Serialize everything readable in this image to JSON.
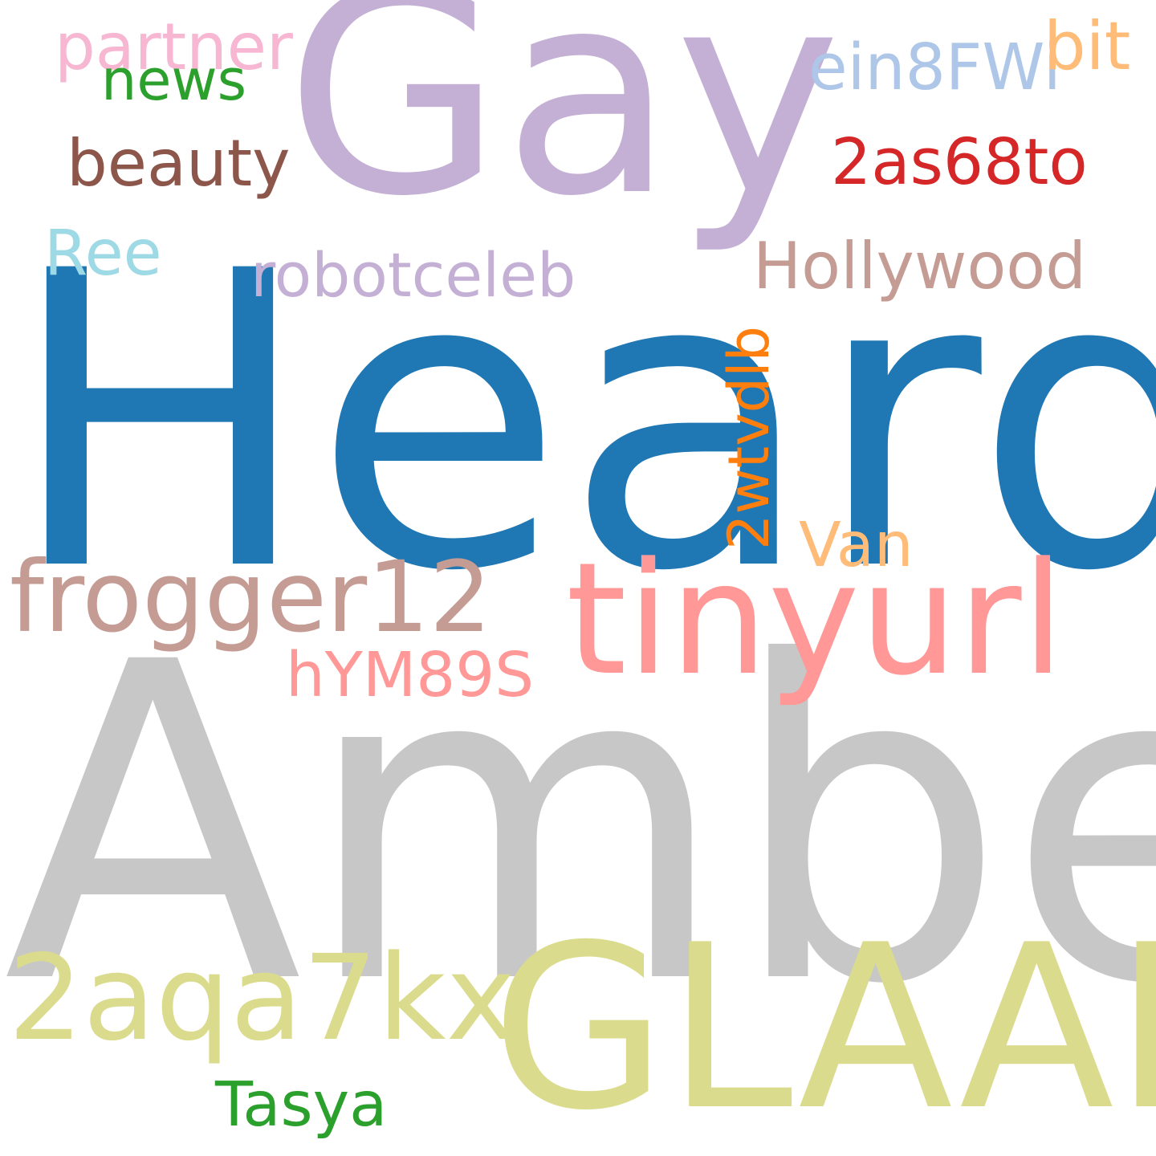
{
  "background": "#ffffff",
  "words": [
    {
      "text": "Gay",
      "color": "#c5b0d5"
    },
    {
      "text": "Heard",
      "color": "#1f77b4"
    },
    {
      "text": "Amber",
      "color": "#c7c7c7"
    },
    {
      "text": "GLAAD",
      "color": "#dbdb8d"
    },
    {
      "text": "tinyurl",
      "color": "#ff9896"
    },
    {
      "text": "frogger12",
      "color": "#c49c94"
    },
    {
      "text": "2aqa7kx",
      "color": "#dbdb8d"
    },
    {
      "text": "partner",
      "color": "#f7b6d2"
    },
    {
      "text": "news",
      "color": "#2ca02c"
    },
    {
      "text": "beauty",
      "color": "#8c564b"
    },
    {
      "text": "ein8FWi",
      "color": "#aec7e8"
    },
    {
      "text": "bit",
      "color": "#ffbb78"
    },
    {
      "text": "2as68to",
      "color": "#d62728"
    },
    {
      "text": "Ree",
      "color": "#9edae5"
    },
    {
      "text": "robotceleb",
      "color": "#c5b0d5"
    },
    {
      "text": "Hollywood",
      "color": "#c49c94"
    },
    {
      "text": "2wtvdlb",
      "color": "#ff7f0e"
    },
    {
      "text": "Van",
      "color": "#ffbb78"
    },
    {
      "text": "hYM89S",
      "color": "#ff9896"
    },
    {
      "text": "Tasya",
      "color": "#2ca02c"
    }
  ]
}
